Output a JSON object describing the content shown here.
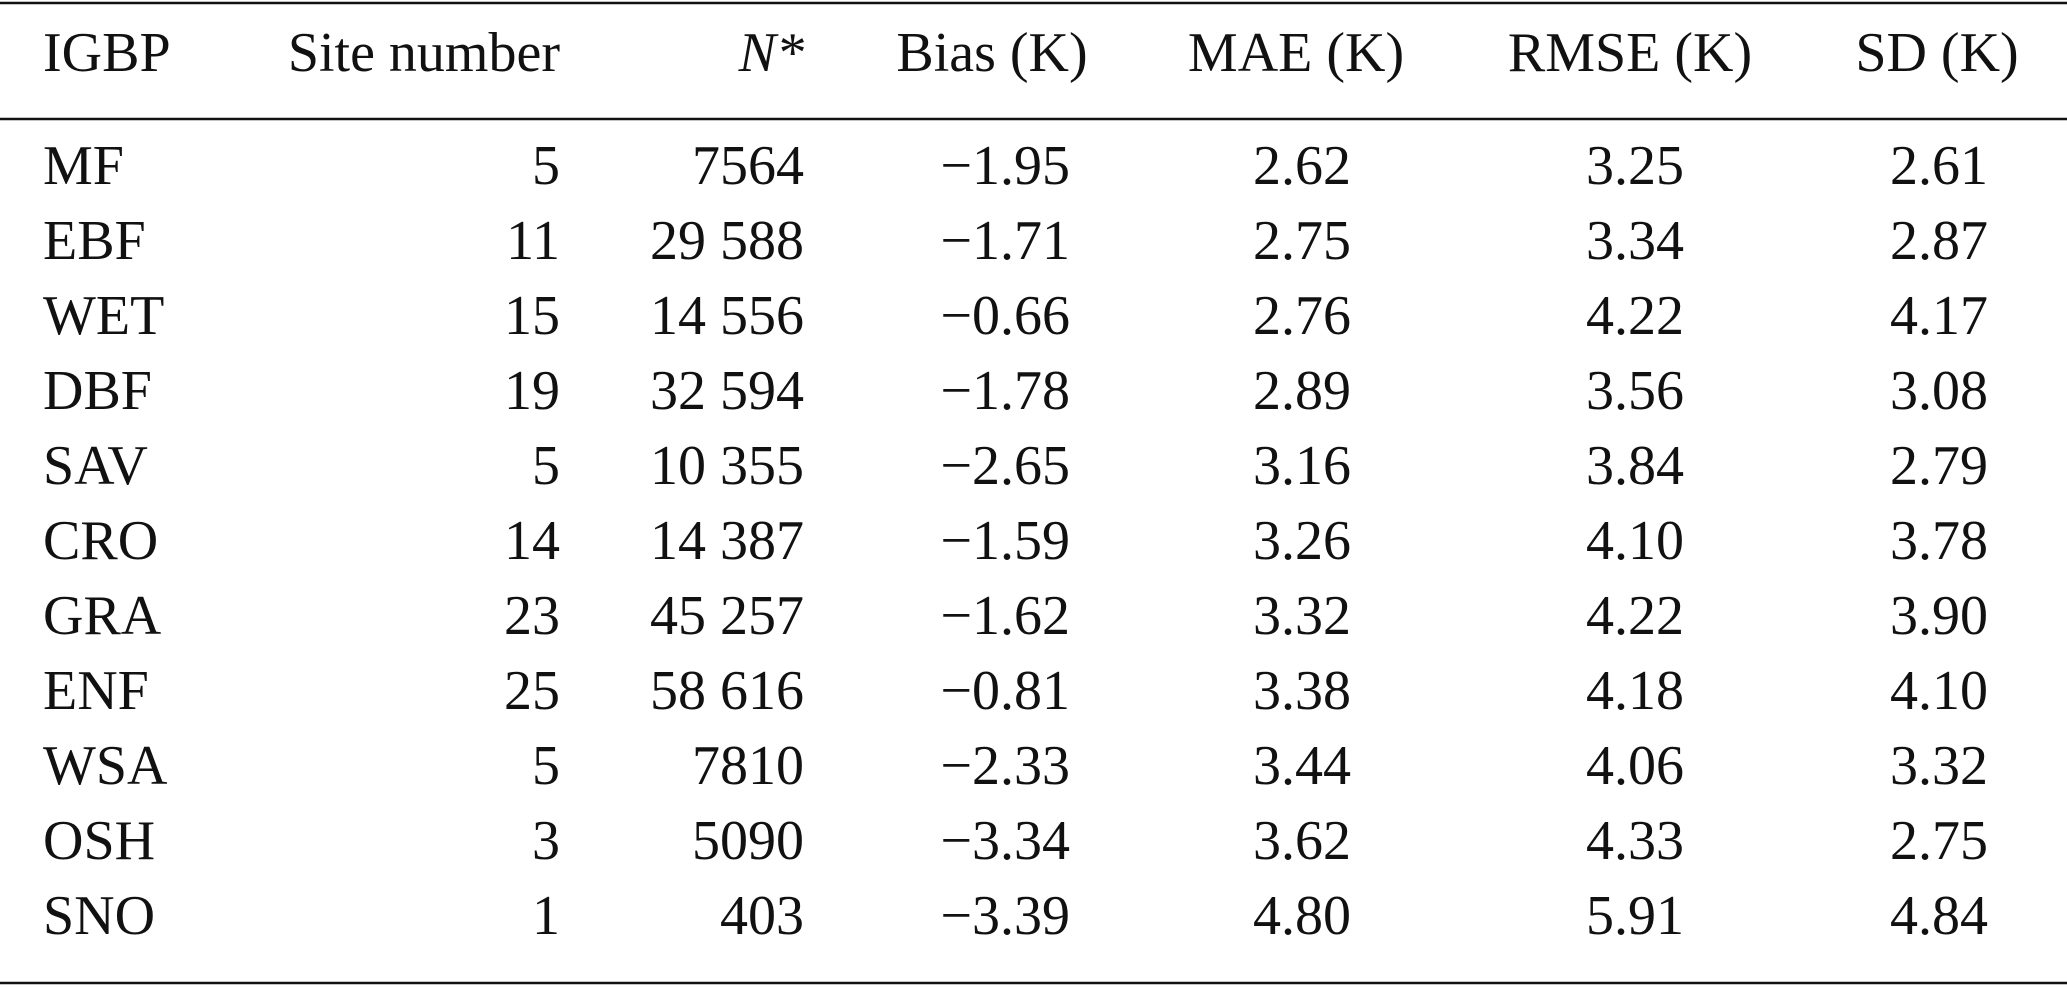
{
  "table": {
    "header": [
      "IGBP",
      "Site number",
      "N*",
      "Bias (K)",
      "MAE (K)",
      "RMSE (K)",
      "SD (K)"
    ],
    "rows": [
      [
        "MF",
        "5",
        "7564",
        "−1.95",
        "2.62",
        "3.25",
        "2.61"
      ],
      [
        "EBF",
        "11",
        "29 588",
        "−1.71",
        "2.75",
        "3.34",
        "2.87"
      ],
      [
        "WET",
        "15",
        "14 556",
        "−0.66",
        "2.76",
        "4.22",
        "4.17"
      ],
      [
        "DBF",
        "19",
        "32 594",
        "−1.78",
        "2.89",
        "3.56",
        "3.08"
      ],
      [
        "SAV",
        "5",
        "10 355",
        "−2.65",
        "3.16",
        "3.84",
        "2.79"
      ],
      [
        "CRO",
        "14",
        "14 387",
        "−1.59",
        "3.26",
        "4.10",
        "3.78"
      ],
      [
        "GRA",
        "23",
        "45 257",
        "−1.62",
        "3.32",
        "4.22",
        "3.90"
      ],
      [
        "ENF",
        "25",
        "58 616",
        "−0.81",
        "3.38",
        "4.18",
        "4.10"
      ],
      [
        "WSA",
        "5",
        "7810",
        "−2.33",
        "3.44",
        "4.06",
        "3.32"
      ],
      [
        "OSH",
        "3",
        "5090",
        "−3.34",
        "3.62",
        "4.33",
        "2.75"
      ],
      [
        "SNO",
        "1",
        "403",
        "−3.39",
        "4.80",
        "5.91",
        "4.84"
      ]
    ]
  }
}
